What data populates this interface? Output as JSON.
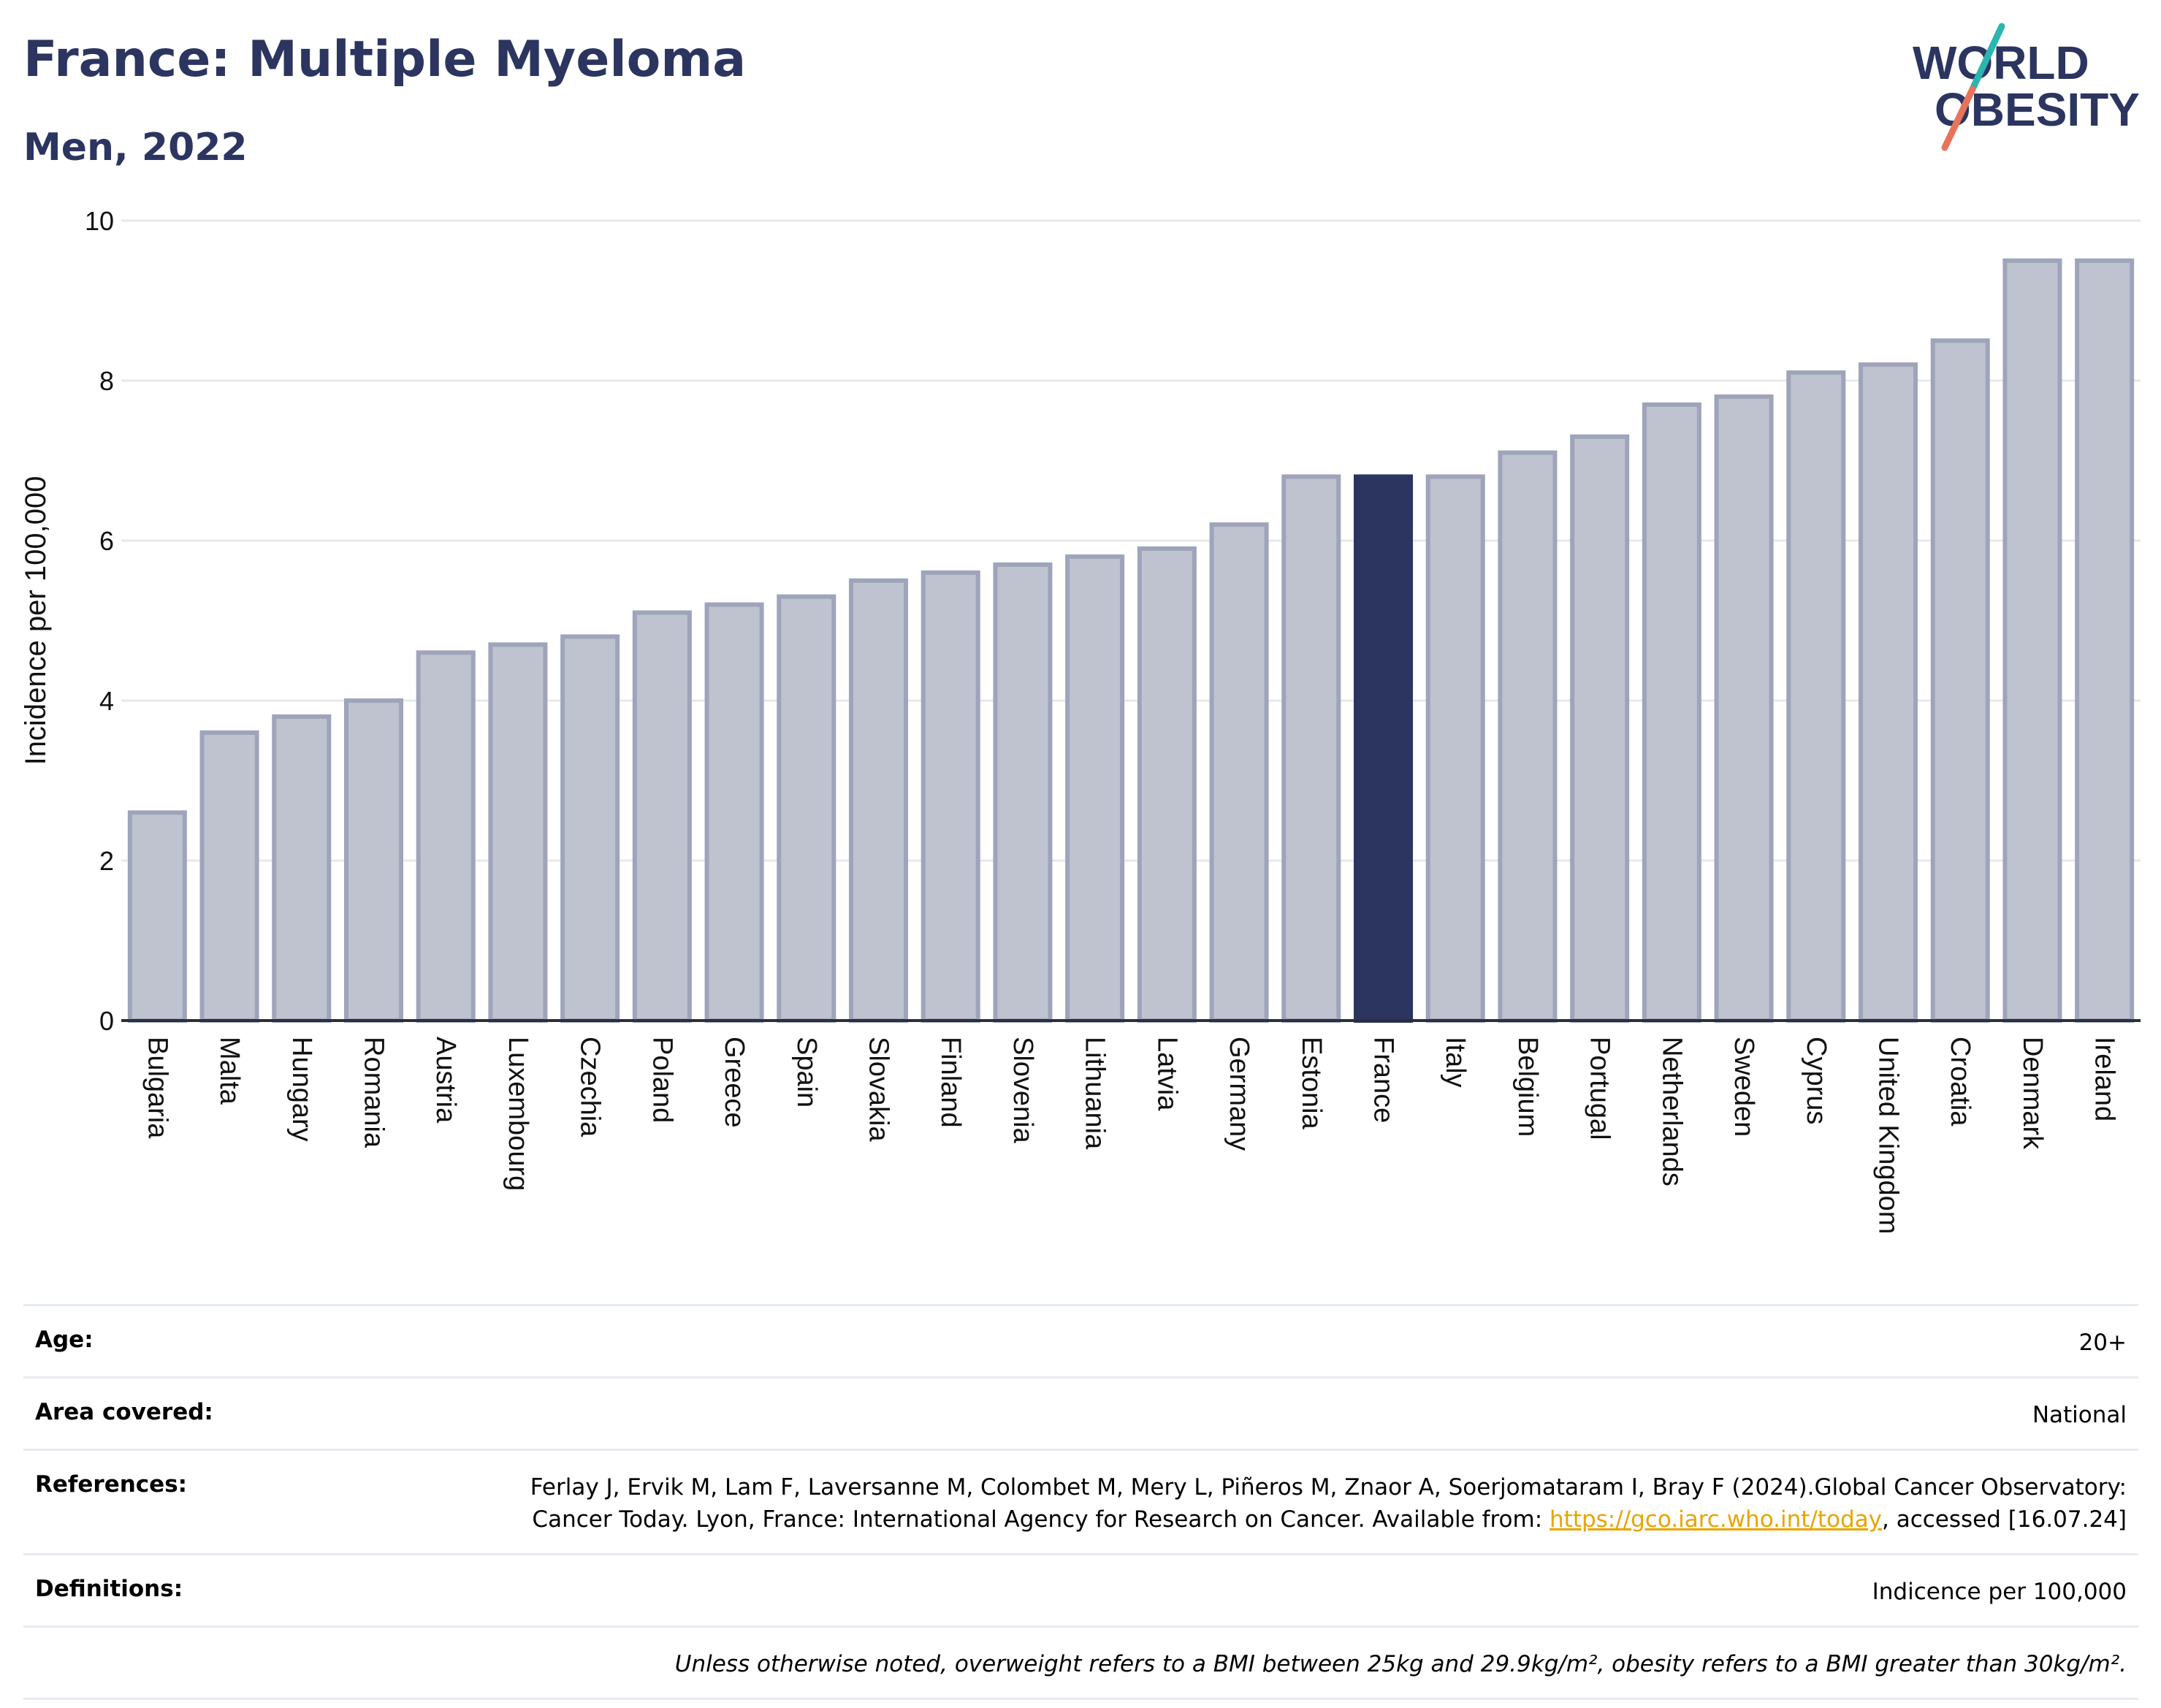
{
  "header": {
    "title": "France: Multiple Myeloma",
    "subtitle": "Men, 2022"
  },
  "logo": {
    "line1": "WORLD",
    "line2": "OBESITY",
    "colors": {
      "text": "#2b3560",
      "slash_teal": "#2bb5b0",
      "slash_coral": "#e8735a"
    }
  },
  "colors": {
    "highlight_bar": "#2b3560",
    "bar_fill": "#bfc3d0",
    "bar_stroke": "#9ea4ba",
    "grid": "#e6e8ee",
    "link": "#e9a400"
  },
  "chart_data": {
    "type": "bar",
    "ylabel": "Incidence per 100,000",
    "ylim": [
      0,
      10
    ],
    "yticks": [
      0,
      2,
      4,
      6,
      8,
      10
    ],
    "grid": true,
    "highlight": "France",
    "categories": [
      "Bulgaria",
      "Malta",
      "Hungary",
      "Romania",
      "Austria",
      "Luxembourg",
      "Czechia",
      "Poland",
      "Greece",
      "Spain",
      "Slovakia",
      "Finland",
      "Slovenia",
      "Lithuania",
      "Latvia",
      "Germany",
      "Estonia",
      "France",
      "Italy",
      "Belgium",
      "Portugal",
      "Netherlands",
      "Sweden",
      "Cyprus",
      "United Kingdom",
      "Croatia",
      "Denmark",
      "Ireland"
    ],
    "values": [
      2.6,
      3.6,
      3.8,
      4.0,
      4.6,
      4.7,
      4.8,
      5.1,
      5.2,
      5.3,
      5.5,
      5.6,
      5.7,
      5.8,
      5.9,
      6.2,
      6.8,
      6.8,
      6.8,
      7.1,
      7.3,
      7.7,
      7.8,
      8.1,
      8.2,
      8.5,
      9.5,
      9.5
    ]
  },
  "info": {
    "age_label": "Age:",
    "age_value": "20+",
    "area_label": "Area covered:",
    "area_value": "National",
    "references_label": "References:",
    "references_text": "Ferlay J, Ervik M, Lam F, Laversanne M, Colombet M, Mery L, Piñeros M, Znaor A, Soerjomataram I, Bray F (2024).Global Cancer Observatory: Cancer Today. Lyon, France: International Agency for Research on Cancer. Available from: ",
    "references_link": "https://gco.iarc.who.int/today",
    "references_suffix": ", accessed [16.07.24]",
    "definitions_label": "Definitions:",
    "definitions_value": "Indicence per 100,000",
    "footnote": "Unless otherwise noted, overweight refers to a BMI between 25kg and 29.9kg/m², obesity refers to a BMI greater than 30kg/m²."
  }
}
